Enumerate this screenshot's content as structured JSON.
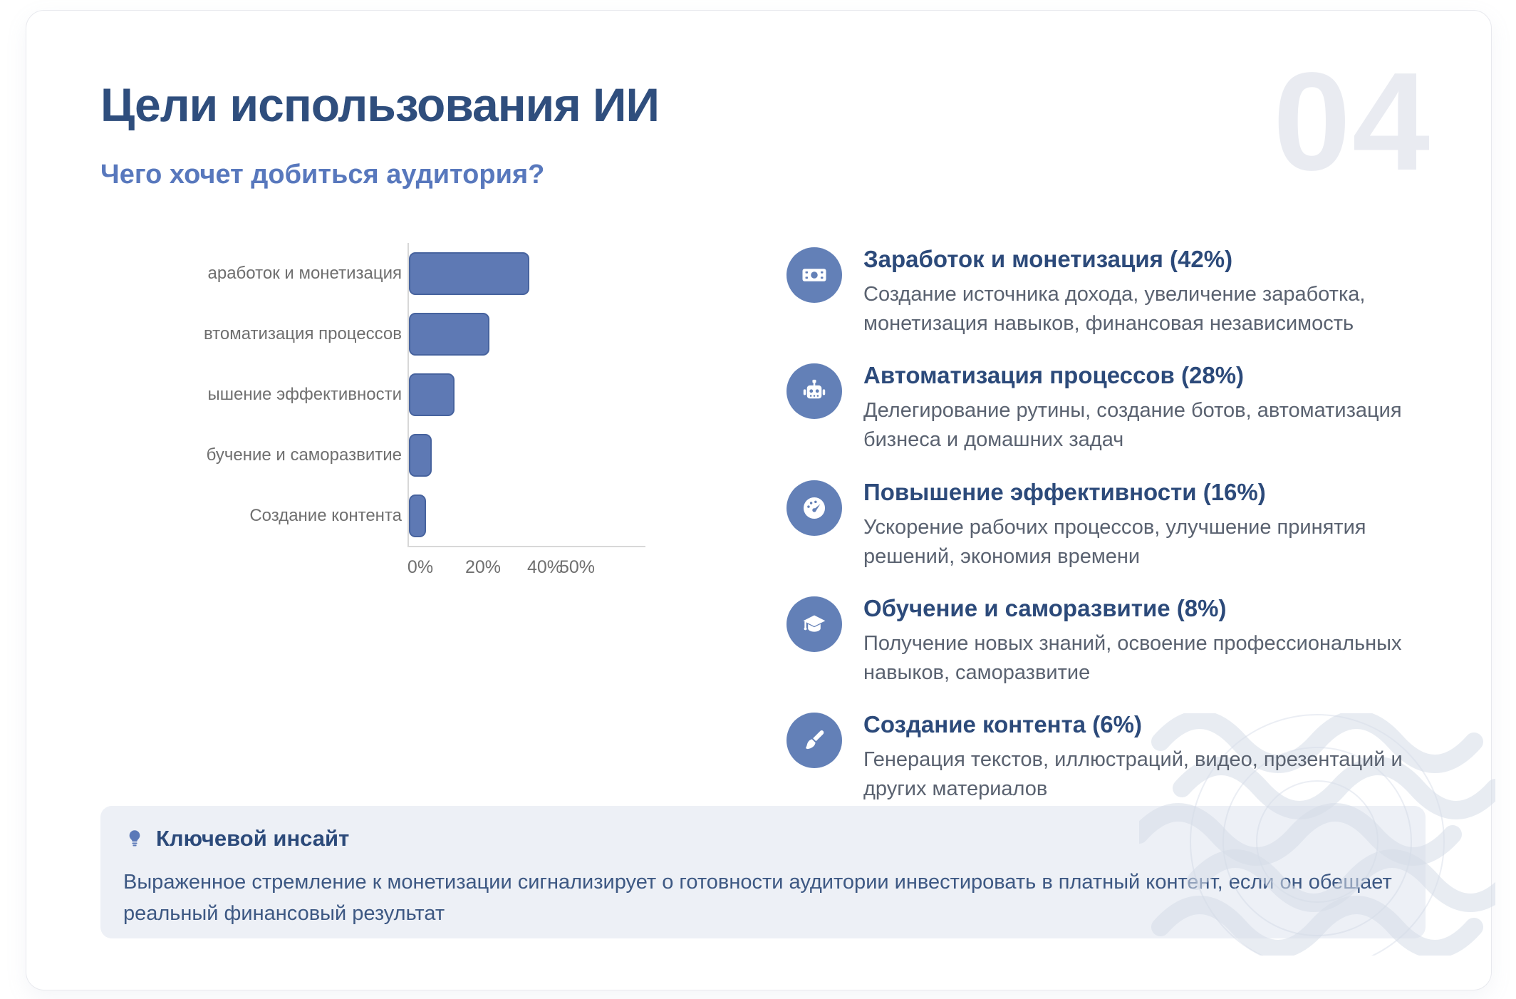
{
  "page": {
    "title": "Цели использования ИИ",
    "subtitle": "Чего хочет добиться аудитория?",
    "slide_number": "04"
  },
  "chart_data": {
    "type": "bar",
    "orientation": "horizontal",
    "categories": [
      "аработок и монетизация",
      "втоматизация процессов",
      "ышение эффективности",
      "бучение и саморазвитие",
      "Создание контента"
    ],
    "values": [
      42,
      28,
      16,
      8,
      6
    ],
    "unit": "%",
    "x_ticks": [
      "0%",
      "20%",
      "40%",
      "50%"
    ],
    "x_tick_values": [
      0,
      20,
      40,
      50
    ],
    "xlim": [
      0,
      55
    ],
    "grid": false,
    "bar_color": "#5e79b4",
    "bar_border_color": "#47639e"
  },
  "goals": [
    {
      "icon": "banknote-icon",
      "title": "Заработок и монетизация (42%)",
      "description": "Создание источника дохода, увеличение заработка, монетизация навыков, финансовая независимость"
    },
    {
      "icon": "robot-icon",
      "title": "Автоматизация процессов (28%)",
      "description": "Делегирование рутины, создание ботов, автоматизация бизнеса и домашних задач"
    },
    {
      "icon": "gauge-icon",
      "title": "Повышение эффективности (16%)",
      "description": "Ускорение рабочих процессов, улучшение принятия решений, экономия времени"
    },
    {
      "icon": "graduation-cap-icon",
      "title": "Обучение и саморазвитие (8%)",
      "description": "Получение новых знаний, освоение профессиональных навыков, саморазвитие"
    },
    {
      "icon": "paintbrush-icon",
      "title": "Создание контента (6%)",
      "description": "Генерация текстов, иллюстраций, видео, презентаций и других материалов"
    }
  ],
  "insight": {
    "icon": "lightbulb-icon",
    "title": "Ключевой инсайт",
    "text": "Выраженное стремление к монетизации сигнализирует о готовности аудитории инвестировать в платный контент, если он обещает реальный финансовый результат"
  },
  "colors": {
    "title": "#2f4e7d",
    "subtitle": "#5878bd",
    "slide_number": "#e9ebf1",
    "bar_fill": "#5e79b4",
    "bar_border": "#47639e",
    "icon_circle": "#6380b7",
    "description_text": "#5a6270",
    "insight_background": "#edf0f6",
    "insight_text": "#3d5883"
  }
}
